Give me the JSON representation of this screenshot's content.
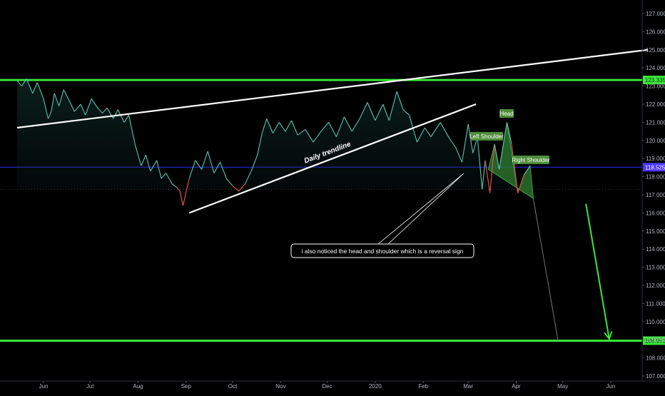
{
  "chart_data": {
    "type": "line",
    "x_axis": {
      "months": [
        "Jun",
        "Jul",
        "Aug",
        "Sep",
        "Oct",
        "Nov",
        "Dec",
        "2020",
        "Feb",
        "Mar",
        "Apr",
        "May",
        "Jun"
      ]
    },
    "y_axis": {
      "ticks": [
        "127.000",
        "126.000",
        "125.000",
        "124.000",
        "123.000",
        "122.000",
        "121.000",
        "120.000",
        "119.000",
        "118.000",
        "117.000",
        "116.000",
        "115.000",
        "114.000",
        "113.000",
        "112.000",
        "111.000",
        "110.000",
        "109.000",
        "108.000",
        "107.000"
      ],
      "ylim": [
        106.75,
        127.45
      ]
    },
    "price_line": {
      "color": "#5fc2b0",
      "points": [
        [
          "2019-05-15",
          123.3
        ],
        [
          "2019-05-18",
          123.0
        ],
        [
          "2019-05-21",
          123.4
        ],
        [
          "2019-05-25",
          122.6
        ],
        [
          "2019-05-28",
          123.2
        ],
        [
          "2019-06-01",
          122.3
        ],
        [
          "2019-06-04",
          121.2
        ],
        [
          "2019-06-06",
          121.6
        ],
        [
          "2019-06-08",
          122.6
        ],
        [
          "2019-06-11",
          121.9
        ],
        [
          "2019-06-14",
          122.8
        ],
        [
          "2019-06-17",
          122.3
        ],
        [
          "2019-06-21",
          121.6
        ],
        [
          "2019-06-25",
          122.0
        ],
        [
          "2019-06-28",
          121.4
        ],
        [
          "2019-07-02",
          122.3
        ],
        [
          "2019-07-05",
          121.9
        ],
        [
          "2019-07-09",
          121.5
        ],
        [
          "2019-07-12",
          121.8
        ],
        [
          "2019-07-16",
          121.2
        ],
        [
          "2019-07-19",
          121.7
        ],
        [
          "2019-07-23",
          121.0
        ],
        [
          "2019-07-26",
          121.4
        ],
        [
          "2019-07-30",
          119.8
        ],
        [
          "2019-08-03",
          118.6
        ],
        [
          "2019-08-06",
          119.2
        ],
        [
          "2019-08-09",
          118.3
        ],
        [
          "2019-08-13",
          118.9
        ],
        [
          "2019-08-16",
          117.9
        ],
        [
          "2019-08-19",
          118.2
        ],
        [
          "2019-08-23",
          117.6
        ],
        [
          "2019-08-26",
          117.4
        ],
        [
          "2019-08-28",
          117.2
        ],
        [
          "2019-08-30",
          116.4
        ],
        [
          "2019-09-03",
          117.9
        ],
        [
          "2019-09-07",
          118.9
        ],
        [
          "2019-09-11",
          118.4
        ],
        [
          "2019-09-15",
          119.4
        ],
        [
          "2019-09-19",
          118.2
        ],
        [
          "2019-09-23",
          118.8
        ],
        [
          "2019-09-27",
          117.9
        ],
        [
          "2019-10-01",
          117.5
        ],
        [
          "2019-10-05",
          117.2
        ],
        [
          "2019-10-09",
          117.6
        ],
        [
          "2019-10-13",
          118.3
        ],
        [
          "2019-10-17",
          119.2
        ],
        [
          "2019-10-20",
          120.4
        ],
        [
          "2019-10-23",
          121.2
        ],
        [
          "2019-10-27",
          120.4
        ],
        [
          "2019-10-31",
          121.0
        ],
        [
          "2019-11-04",
          120.5
        ],
        [
          "2019-11-08",
          121.1
        ],
        [
          "2019-11-12",
          120.3
        ],
        [
          "2019-11-17",
          120.6
        ],
        [
          "2019-11-22",
          119.9
        ],
        [
          "2019-11-27",
          120.5
        ],
        [
          "2019-12-02",
          121.0
        ],
        [
          "2019-12-07",
          120.2
        ],
        [
          "2019-12-12",
          121.3
        ],
        [
          "2019-12-17",
          120.5
        ],
        [
          "2019-12-22",
          121.2
        ],
        [
          "2019-12-27",
          122.1
        ],
        [
          "2020-01-01",
          121.1
        ],
        [
          "2020-01-06",
          122.0
        ],
        [
          "2020-01-10",
          121.1
        ],
        [
          "2020-01-15",
          122.7
        ],
        [
          "2020-01-19",
          121.7
        ],
        [
          "2020-01-23",
          121.4
        ],
        [
          "2020-01-28",
          119.9
        ],
        [
          "2020-02-02",
          120.7
        ],
        [
          "2020-02-06",
          120.2
        ],
        [
          "2020-02-12",
          121.0
        ],
        [
          "2020-02-18",
          120.1
        ],
        [
          "2020-02-22",
          119.6
        ],
        [
          "2020-02-26",
          118.8
        ],
        [
          "2020-03-01",
          120.9
        ],
        [
          "2020-03-04",
          119.3
        ],
        [
          "2020-03-07",
          120.2
        ],
        [
          "2020-03-10",
          117.3
        ],
        [
          "2020-03-12",
          118.9
        ],
        [
          "2020-03-15",
          117.1
        ],
        [
          "2020-03-18",
          119.8
        ],
        [
          "2020-03-21",
          118.4
        ],
        [
          "2020-03-26",
          121.0
        ],
        [
          "2020-03-29",
          119.8
        ],
        [
          "2020-04-02",
          117.1
        ],
        [
          "2020-04-06",
          118.1
        ],
        [
          "2020-04-10",
          118.6
        ]
      ]
    },
    "horizontal_levels": [
      {
        "value": 123.335,
        "label": "123.335",
        "color": "#39e639"
      },
      {
        "value": 108.951,
        "label": "108.951",
        "color": "#39e639"
      },
      {
        "value": 118.525,
        "label": "118.525",
        "color": "#2a2aff"
      }
    ],
    "trendlines": [
      {
        "from": [
          "2019-05-15",
          120.7
        ],
        "to": [
          "2020-06-25",
          125.0
        ],
        "color": "#ffffff"
      },
      {
        "from": [
          "2019-09-03",
          116.0
        ],
        "to": [
          "2020-03-06",
          122.0
        ],
        "color": "#ffffff",
        "label": "Daily trendline"
      }
    ],
    "annotations": {
      "left_shoulder": "Left Shoulder",
      "head": "Head",
      "right_shoulder": "Right Shoulder",
      "callout": "i also noticed the head and shoulder which is a reversal sign"
    },
    "projection_arrow": {
      "from": [
        "2020-05-16",
        116.5
      ],
      "to": [
        "2020-05-31",
        109.05
      ],
      "color": "#39e639"
    },
    "grid": false
  }
}
